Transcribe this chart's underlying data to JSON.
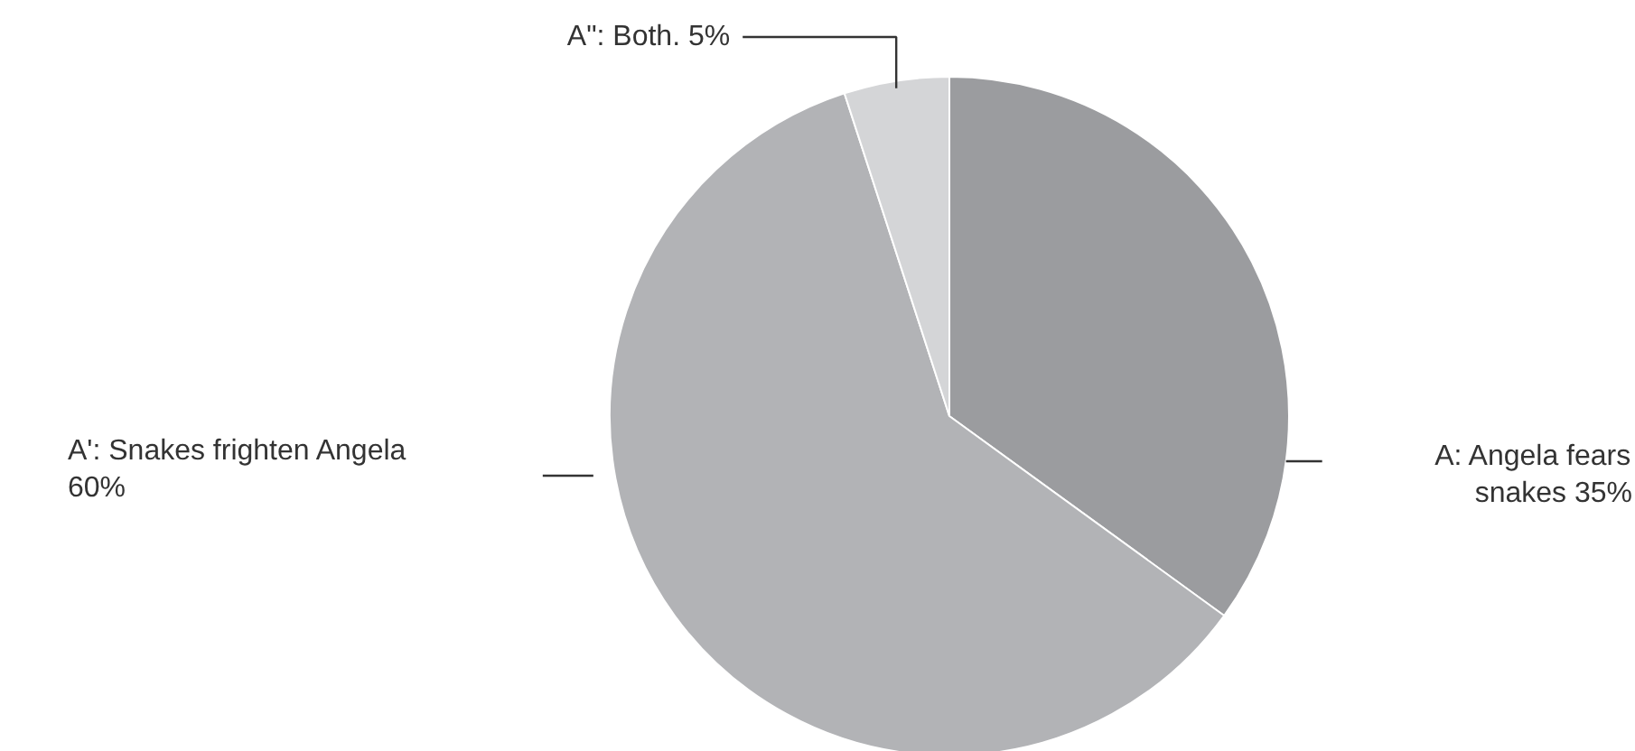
{
  "chart_data": {
    "type": "pie",
    "categories": [
      "A: Angela fears snakes",
      "A': Snakes frighten Angela",
      "A\": Both."
    ],
    "values": [
      35,
      60,
      5
    ],
    "colors": [
      "#9b9c9f",
      "#b2b3b6",
      "#d4d5d7"
    ],
    "value_labels": [
      "35%",
      "60%",
      "5%"
    ]
  }
}
